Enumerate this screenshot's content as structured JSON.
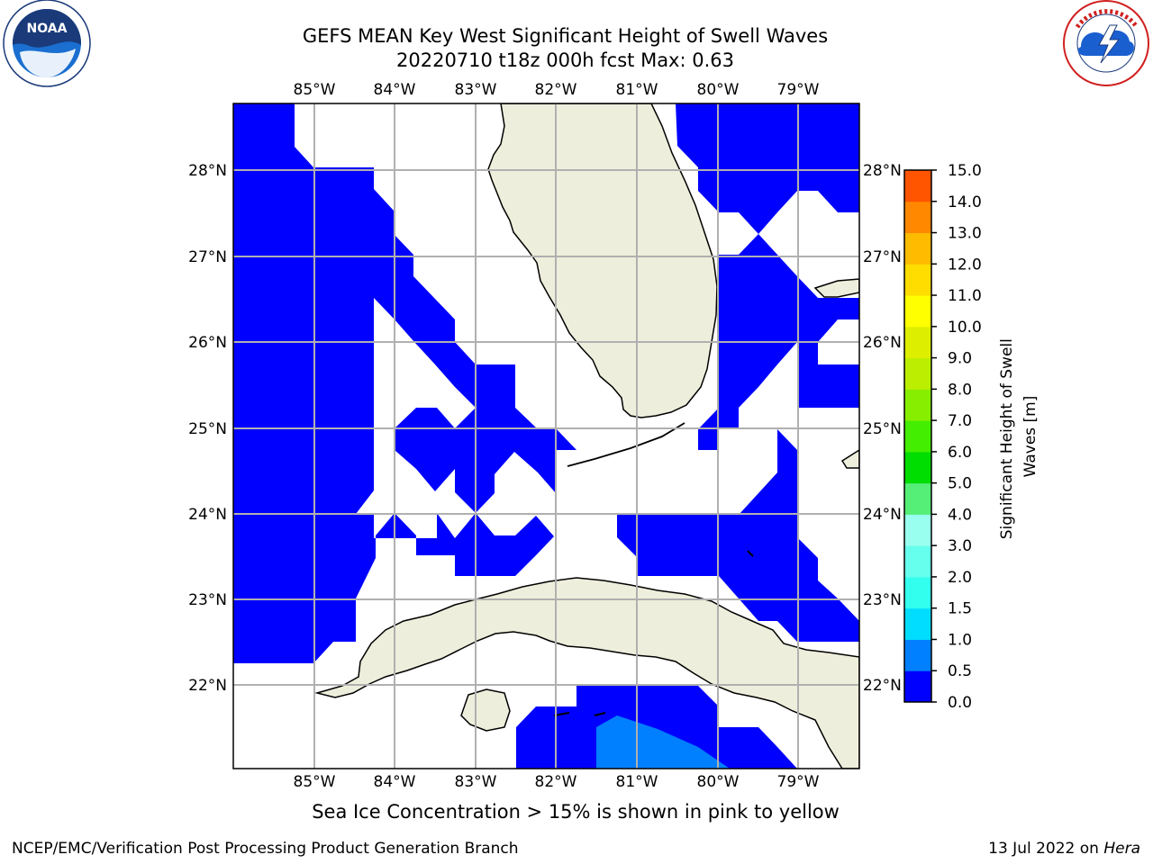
{
  "header": {
    "title_line1": "GEFS MEAN Key West Significant Height of Swell Waves",
    "title_line2": "20220710 t18z 000h fcst   Max: 0.63"
  },
  "logos": {
    "left": {
      "name": "noaa-logo",
      "text": "NOAA"
    },
    "right": {
      "name": "national-weather-service-logo",
      "text": "NATIONAL WEATHER SERVICE"
    }
  },
  "map": {
    "lon_labels": [
      "85°W",
      "84°W",
      "83°W",
      "82°W",
      "81°W",
      "80°W",
      "79°W"
    ],
    "lat_labels": [
      "28°N",
      "27°N",
      "26°N",
      "25°N",
      "24°N",
      "23°N",
      "22°N"
    ],
    "land_color": "#eeeedc",
    "grid_color": "#b0b0b0"
  },
  "colorbar": {
    "label": "Significant Height of Swell Waves [m]",
    "label_line1": "Significant Height of Swell",
    "label_line2": "Waves [m]",
    "ticks": [
      "0.0",
      "0.5",
      "1.0",
      "1.5",
      "2.0",
      "3.0",
      "4.0",
      "5.0",
      "6.0",
      "7.0",
      "8.0",
      "9.0",
      "10.0",
      "11.0",
      "12.0",
      "13.0",
      "14.0",
      "15.0"
    ],
    "colors": [
      "#0000ff",
      "#0080ff",
      "#00ddff",
      "#33ffee",
      "#66ffee",
      "#99ffee",
      "#55ee77",
      "#00dd00",
      "#44ee00",
      "#88ee00",
      "#bbee00",
      "#ddee00",
      "#ffff00",
      "#ffdd00",
      "#ffbb00",
      "#ff8800",
      "#ff5500",
      "#ff2200",
      "#ff0000"
    ]
  },
  "footer": {
    "note": "Sea Ice Concentration > 15% is shown in pink to yellow",
    "credit": "NCEP/EMC/Verification Post Processing Product Generation Branch",
    "date_prefix": "13 Jul 2022 on ",
    "date_host": "Hera"
  }
}
